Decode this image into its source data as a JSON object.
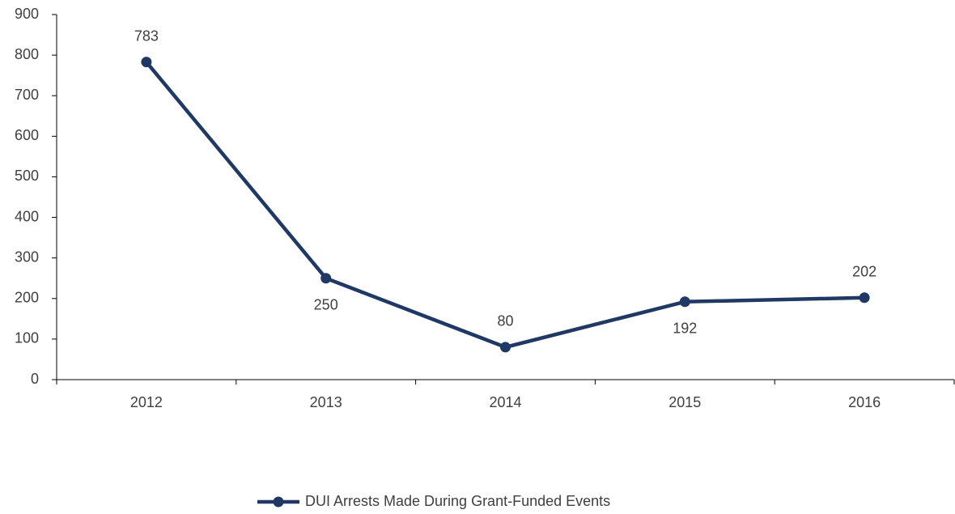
{
  "chart_data": {
    "type": "line",
    "categories": [
      "2012",
      "2013",
      "2014",
      "2015",
      "2016"
    ],
    "series": [
      {
        "name": "DUI Arrests Made During Grant-Funded Events",
        "color": "#1f3864",
        "values": [
          783,
          250,
          80,
          192,
          202
        ]
      }
    ],
    "ylim": [
      0,
      900
    ],
    "yticks": [
      0,
      100,
      200,
      300,
      400,
      500,
      600,
      700,
      800,
      900
    ],
    "legend": "bottom"
  }
}
